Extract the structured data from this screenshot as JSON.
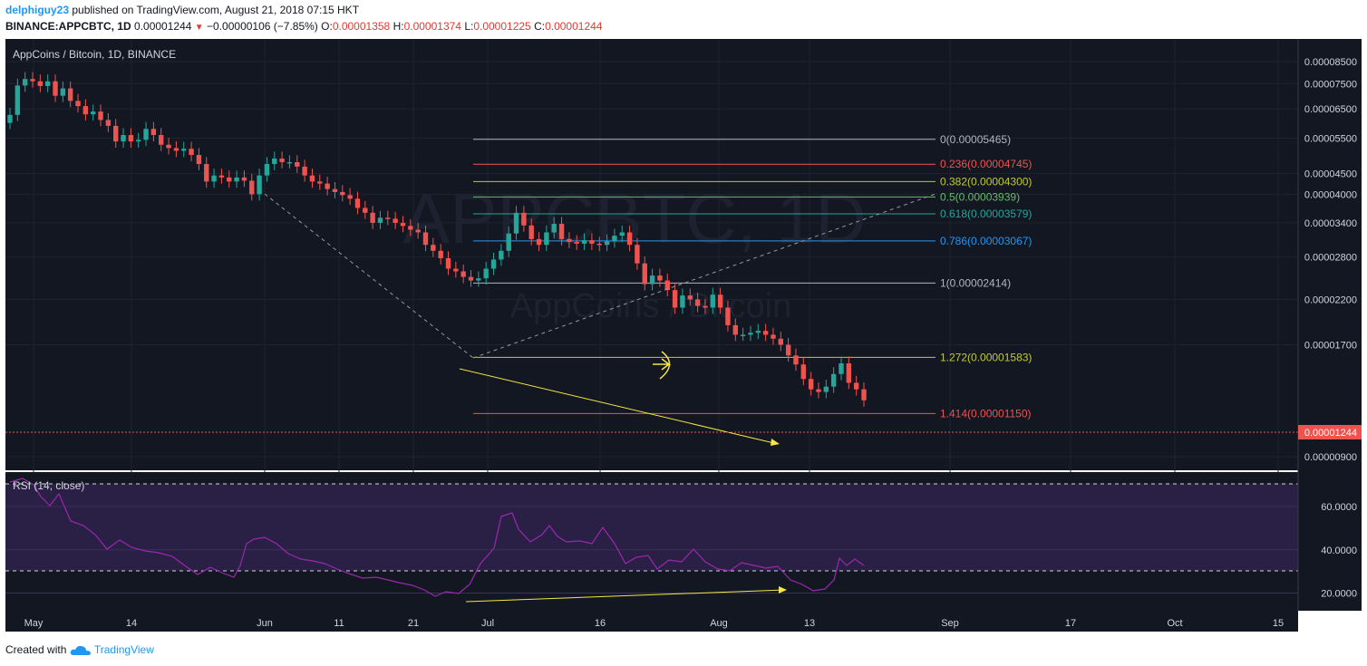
{
  "header": {
    "author": "delphiguy23",
    "published": "published on TradingView.com, August 21, 2018 07:15 HKT",
    "symbol": "BINANCE:APPCBTC, 1D",
    "last": "0.00001244",
    "change": "−0.00000106 (−7.85%)",
    "o_label": "O:",
    "o": "0.00001358",
    "h_label": "H:",
    "h": "0.00001374",
    "l_label": "L:",
    "l": "0.00001225",
    "c_label": "C:",
    "c": "0.00001244"
  },
  "footer": {
    "created": "Created with",
    "brand": "TradingView"
  },
  "chart_data": [
    {
      "type": "candlestick",
      "title": "AppCoins / Bitcoin, 1D, BINANCE",
      "watermark_symbol": "APPCBTC, 1D",
      "watermark_name": "AppCoins / Bitcoin",
      "y_axis_ticks": [
        "0.00008500",
        "0.00007500",
        "0.00006500",
        "0.00005500",
        "0.00004500",
        "0.00004000",
        "0.00003400",
        "0.00002800",
        "0.00002200",
        "0.00001700",
        "0.00000900"
      ],
      "y_axis_scale": "log",
      "last_price_label": "0.00001244",
      "x_axis_ticks": [
        "May",
        "14",
        "Jun",
        "11",
        "21",
        "Jul",
        "16",
        "Aug",
        "13",
        "Sep",
        "17",
        "Oct",
        "15"
      ],
      "fibonacci": [
        {
          "label": "0(0.00005465)",
          "level": 5.465e-05,
          "color": "#b2b5be"
        },
        {
          "label": "0.236(0.00004745)",
          "level": 4.745e-05,
          "color": "#ef5350"
        },
        {
          "label": "0.382(0.00004300)",
          "level": 4.3e-05,
          "color": "#c0ca33"
        },
        {
          "label": "0.5(0.00003939)",
          "level": 3.939e-05,
          "color": "#66bb6a"
        },
        {
          "label": "0.618(0.00003579)",
          "level": 3.579e-05,
          "color": "#26a69a"
        },
        {
          "label": "0.786(0.00003067)",
          "level": 3.067e-05,
          "color": "#2196f3"
        },
        {
          "label": "1(0.00002414)",
          "level": 2.414e-05,
          "color": "#b2b5be"
        },
        {
          "label": "1.272(0.00001583)",
          "level": 1.583e-05,
          "color": "#c0ca33"
        },
        {
          "label": "1.414(0.00001150)",
          "level": 1.15e-05,
          "color": "#ef5350"
        }
      ],
      "colors": {
        "up": "#26a69a",
        "down": "#ef5350",
        "background": "#131722",
        "trendline": "#f5e642",
        "rsi": "#9c27b0"
      }
    },
    {
      "type": "line",
      "title": "RSI (14, close)",
      "y_axis_ticks": [
        "60.0000",
        "40.0000",
        "20.0000"
      ],
      "bands": [
        30,
        70
      ]
    }
  ]
}
